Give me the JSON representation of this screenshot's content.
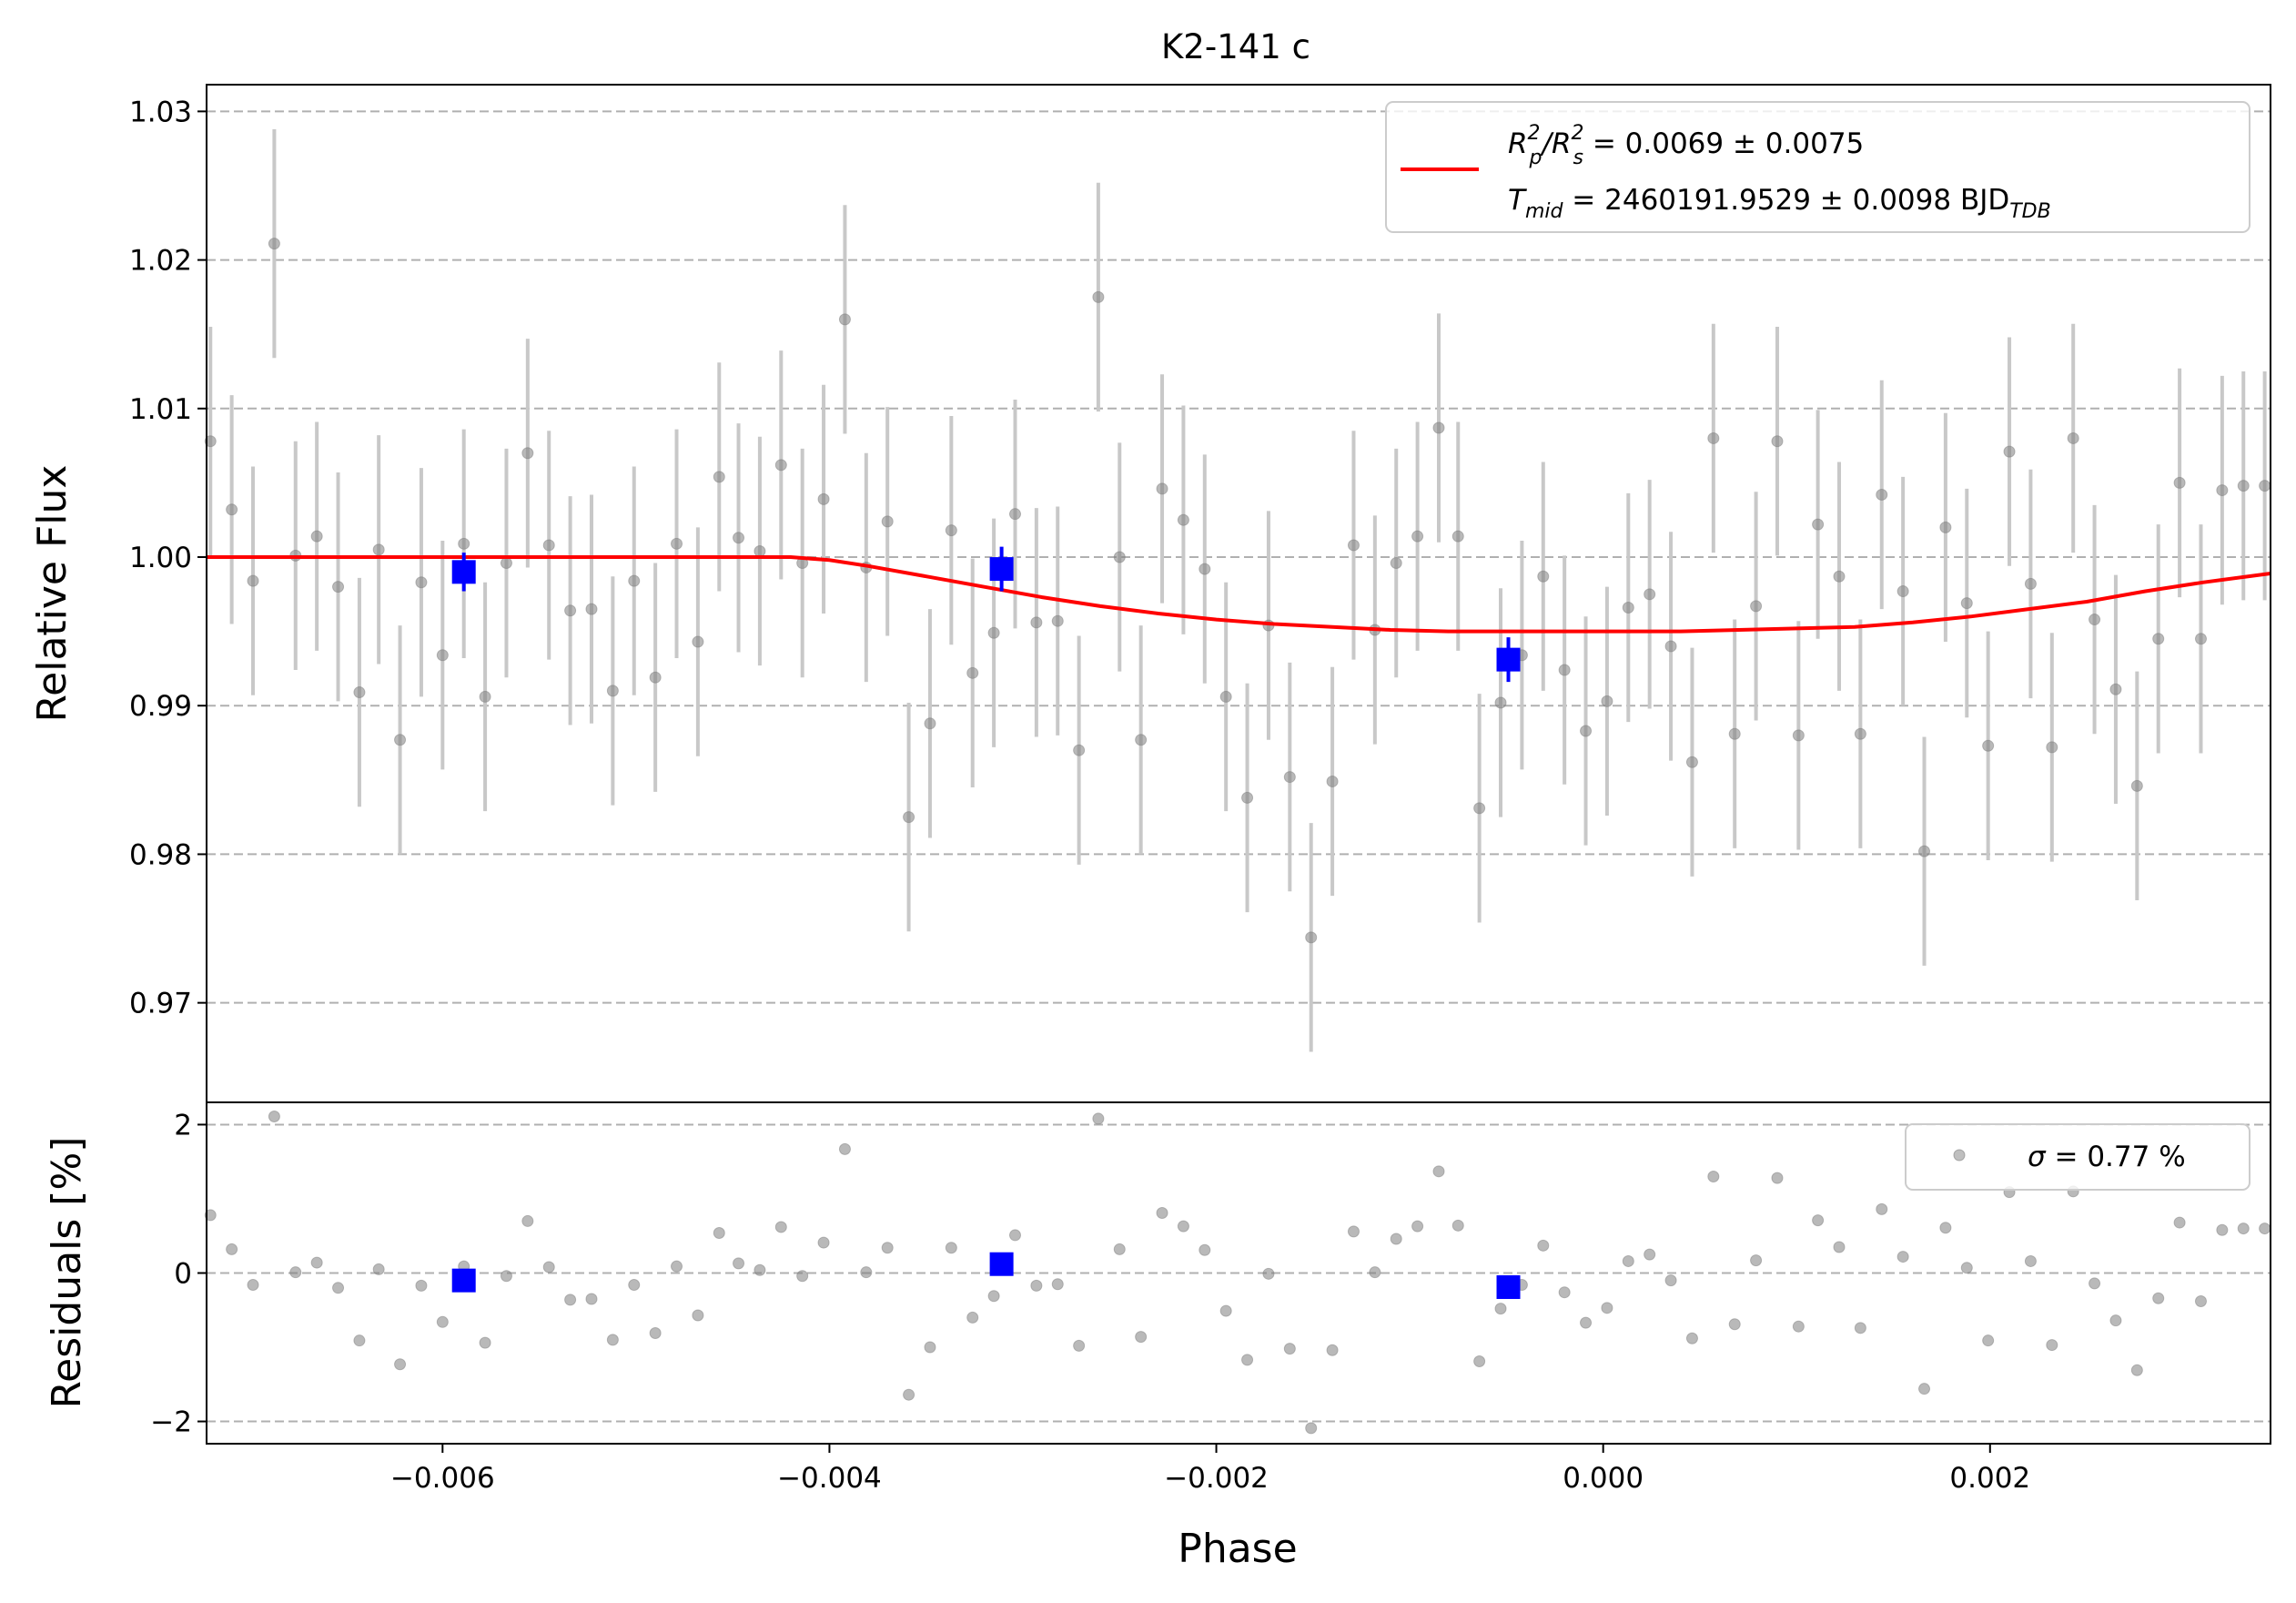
{
  "chart_data": [
    {
      "panel": "top",
      "type": "scatter",
      "title": "K2-141 c",
      "xlabel": "",
      "ylabel": "Relative Flux",
      "xlim": [
        -0.00722,
        0.00345
      ],
      "ylim": [
        0.9633,
        1.0318
      ],
      "yticks": [
        0.97,
        0.98,
        0.99,
        1.0,
        1.01,
        1.02,
        1.03
      ],
      "ytick_labels": [
        "0.97",
        "0.98",
        "0.99",
        "1.00",
        "1.01",
        "1.02",
        "1.03"
      ],
      "grid": "horizontal dashed",
      "legend": {
        "placement": "top-right",
        "line1_main": "R",
        "line1_sub1": "p",
        "line1_sup1": "2",
        "line1_mid": "/R",
        "line1_sub2": "s",
        "line1_sup2": "2",
        "line1_value": " = 0.0069 ± 0.0075",
        "line2_main": "T",
        "line2_sub": "mid",
        "line2_value": " = 2460191.9529 ± 0.0098 BJD",
        "line2_unit_sub": "TDB"
      },
      "colors": {
        "model": "#ff0000",
        "binned": "#0000ff",
        "data": "#808080",
        "errorbar": "#c8c8c8"
      },
      "model_curve": {
        "x": [
          -0.00722,
          -0.0042,
          -0.004,
          -0.0038,
          -0.0035,
          -0.0032,
          -0.0029,
          -0.0026,
          -0.0023,
          -0.002,
          -0.0017,
          -0.0014,
          -0.0011,
          -0.0008,
          -0.0005,
          -0.0002,
          0.0001,
          0.0004,
          0.0007,
          0.001,
          0.0013,
          0.0016,
          0.0019,
          0.0022,
          0.0025,
          0.0028,
          0.0031,
          0.00345
        ],
        "y": [
          1.0,
          1.0,
          0.9998,
          0.9994,
          0.9987,
          0.998,
          0.9973,
          0.9967,
          0.9962,
          0.9958,
          0.9955,
          0.9953,
          0.9951,
          0.995,
          0.995,
          0.995,
          0.995,
          0.995,
          0.9951,
          0.9952,
          0.9953,
          0.9956,
          0.996,
          0.9965,
          0.997,
          0.9977,
          0.9983,
          0.9989
        ]
      },
      "binned": [
        {
          "x": -0.00589,
          "y": 0.999,
          "err": 0.0013
        },
        {
          "x": -0.00311,
          "y": 0.9992,
          "err": 0.0015
        },
        {
          "x": -0.00049,
          "y": 0.9931,
          "err": 0.0015
        }
      ],
      "data_x": [
        -0.0072,
        -0.00709,
        -0.00698,
        -0.00687,
        -0.00676,
        -0.00665,
        -0.00654,
        -0.00643,
        -0.00633,
        -0.00622,
        -0.00611,
        -0.006,
        -0.00589,
        -0.00578,
        -0.00567,
        -0.00556,
        -0.00545,
        -0.00534,
        -0.00523,
        -0.00512,
        -0.00501,
        -0.0049,
        -0.00479,
        -0.00468,
        -0.00457,
        -0.00447,
        -0.00436,
        -0.00425,
        -0.00414,
        -0.00403,
        -0.00392,
        -0.00381,
        -0.0037,
        -0.00359,
        -0.00348,
        -0.00337,
        -0.00326,
        -0.00315,
        -0.00304,
        -0.00293,
        -0.00282,
        -0.00271,
        -0.00261,
        -0.0025,
        -0.00239,
        -0.00228,
        -0.00217,
        -0.00206,
        -0.00195,
        -0.00184,
        -0.00173,
        -0.00162,
        -0.00151,
        -0.0014,
        -0.00129,
        -0.00118,
        -0.00107,
        -0.00096,
        -0.00085,
        -0.00075,
        -0.00064,
        -0.00053,
        -0.00042,
        -0.00031,
        -0.0002,
        -9e-05,
        2e-05,
        0.00013,
        0.00024,
        0.00035,
        0.00046,
        0.00057,
        0.00068,
        0.00079,
        0.0009,
        0.00101,
        0.00111,
        0.00122,
        0.00133,
        0.00144,
        0.00155,
        0.00166,
        0.00177,
        0.00188,
        0.00199,
        0.0021,
        0.00221,
        0.00232,
        0.00243,
        0.00254,
        0.00265,
        0.00276,
        0.00287,
        0.00298,
        0.00309,
        0.0032,
        0.00331,
        0.00342
      ],
      "data_y": [
        1.0078,
        1.0032,
        0.9984,
        1.0211,
        1.0001,
        1.0014,
        0.998,
        0.9909,
        1.0005,
        0.9877,
        0.9983,
        0.9934,
        1.0009,
        0.9906,
        0.9996,
        1.007,
        1.0008,
        0.9964,
        0.9965,
        0.991,
        0.9984,
        0.9919,
        1.0009,
        0.9943,
        1.0054,
        1.0013,
        1.0004,
        1.0062,
        0.9996,
        1.0039,
        1.016,
        0.9993,
        1.0024,
        0.9825,
        0.9888,
        1.0018,
        0.9922,
        0.9949,
        1.0029,
        0.9956,
        0.9957,
        0.987,
        1.0175,
        1.0,
        0.9877,
        1.0046,
        1.0025,
        0.9992,
        0.9906,
        0.9838,
        0.9954,
        0.9852,
        0.9744,
        0.9849,
        1.0008,
        0.9951,
        0.9996,
        1.0014,
        1.0087,
        1.0014,
        0.9831,
        0.9902,
        0.9934,
        0.9987,
        0.9924,
        0.9883,
        0.9903,
        0.9966,
        0.9975,
        0.994,
        0.9862,
        1.008,
        0.9881,
        0.9967,
        1.0078,
        0.988,
        1.0022,
        0.9987,
        0.9881,
        1.0042,
        0.9977,
        0.9802,
        1.002,
        0.9969,
        0.9873,
        1.0071,
        0.9982,
        0.9872,
        1.008,
        0.9958,
        0.9911,
        0.9846,
        0.9945,
        1.005,
        0.9945,
        1.0045,
        1.0048,
        1.0048
      ],
      "errorbar": 0.0077
    },
    {
      "panel": "bottom",
      "type": "scatter",
      "xlabel": "Phase",
      "ylabel": "Residuals [%]",
      "xlim": [
        -0.00722,
        0.00345
      ],
      "ylim": [
        -2.3,
        2.3
      ],
      "xticks": [
        -0.006,
        -0.004,
        -0.002,
        0.0,
        0.002
      ],
      "xtick_labels": [
        "−0.006",
        "−0.004",
        "−0.002",
        "0.000",
        "0.002"
      ],
      "yticks": [
        -2,
        0,
        2
      ],
      "ytick_labels": [
        "−2",
        "0",
        "2"
      ],
      "grid": "horizontal dashed",
      "legend": {
        "placement": "top-right",
        "sigma_symbol": "σ",
        "sigma_text": " = 0.77 %"
      },
      "binned": [
        {
          "x": -0.00589,
          "y": -0.1
        },
        {
          "x": -0.00311,
          "y": 0.12
        },
        {
          "x": -0.00049,
          "y": -0.19
        }
      ],
      "residuals": [
        0.78,
        0.32,
        -0.16,
        2.11,
        0.01,
        0.14,
        -0.2,
        -0.91,
        0.05,
        -1.23,
        -0.17,
        -0.66,
        0.09,
        -0.94,
        -0.04,
        0.7,
        0.08,
        -0.36,
        -0.35,
        -0.9,
        -0.16,
        -0.81,
        0.09,
        -0.57,
        0.54,
        0.13,
        0.04,
        0.62,
        -0.04,
        0.41,
        1.67,
        0.01,
        0.34,
        -1.64,
        -1.0,
        0.34,
        -0.6,
        -0.31,
        0.51,
        -0.17,
        -0.15,
        -0.98,
        2.08,
        0.32,
        -0.86,
        0.81,
        0.63,
        0.31,
        -0.51,
        -1.17,
        -0.01,
        -1.02,
        -2.09,
        -1.04,
        0.56,
        0.01,
        0.46,
        0.63,
        1.37,
        0.64,
        -1.19,
        -0.48,
        -0.16,
        0.37,
        -0.26,
        -0.67,
        -0.47,
        0.16,
        0.25,
        -0.1,
        -0.88,
        1.3,
        -0.69,
        0.17,
        1.28,
        -0.72,
        0.71,
        0.35,
        -0.74,
        0.86,
        0.22,
        -1.56,
        0.61,
        0.07,
        -0.91,
        1.09,
        0.16,
        -0.97,
        1.1,
        -0.14,
        -0.64,
        -1.31,
        -0.34,
        0.68,
        -0.38,
        0.58,
        0.6,
        0.6
      ]
    }
  ]
}
